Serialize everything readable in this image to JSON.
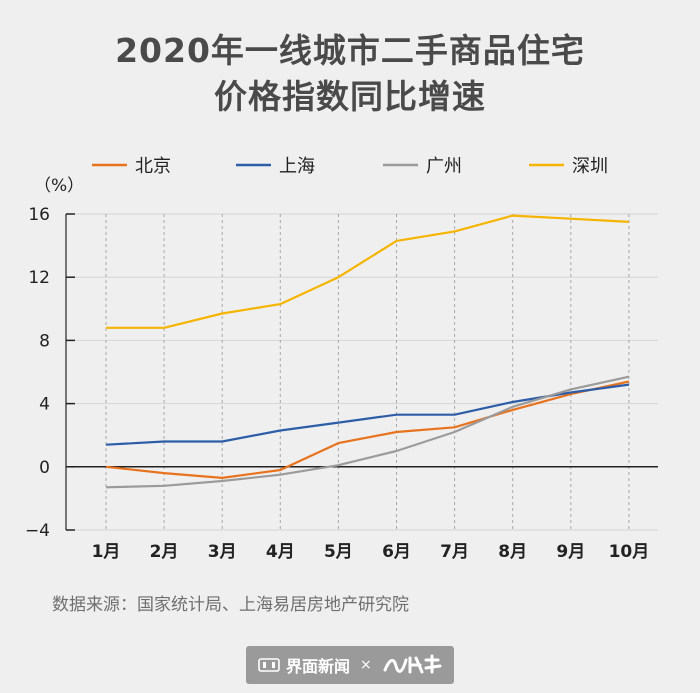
{
  "title_line1": "2020年一线城市二手商品住宅",
  "title_line2": "价格指数同比增速",
  "source": "数据来源：国家统计局、上海易居房地产研究院",
  "footer": {
    "brand": "界面新闻",
    "separator": "×"
  },
  "colors": {
    "北京": "#e8731e",
    "上海": "#2e5da8",
    "广州": "#9b9b9b",
    "深圳": "#f5b400"
  },
  "chart_data": {
    "type": "line",
    "categories": [
      "1月",
      "2月",
      "3月",
      "4月",
      "5月",
      "6月",
      "7月",
      "8月",
      "9月",
      "10月"
    ],
    "ylabel": "（%）",
    "ylim": [
      -4,
      16
    ],
    "yticks": [
      -4,
      0,
      4,
      8,
      12,
      16
    ],
    "legend": "top",
    "series": [
      {
        "name": "北京",
        "values": [
          0,
          -0.4,
          -0.7,
          -0.2,
          1.5,
          2.2,
          2.5,
          3.6,
          4.6,
          5.4
        ]
      },
      {
        "name": "上海",
        "values": [
          1.4,
          1.6,
          1.6,
          2.3,
          2.8,
          3.3,
          3.3,
          4.1,
          4.7,
          5.2
        ]
      },
      {
        "name": "广州",
        "values": [
          -1.3,
          -1.2,
          -0.9,
          -0.5,
          0.1,
          1.0,
          2.2,
          3.8,
          4.9,
          5.7
        ]
      },
      {
        "name": "深圳",
        "values": [
          8.8,
          8.8,
          9.7,
          10.3,
          12.0,
          14.3,
          14.9,
          15.9,
          15.7,
          15.5
        ]
      }
    ]
  }
}
